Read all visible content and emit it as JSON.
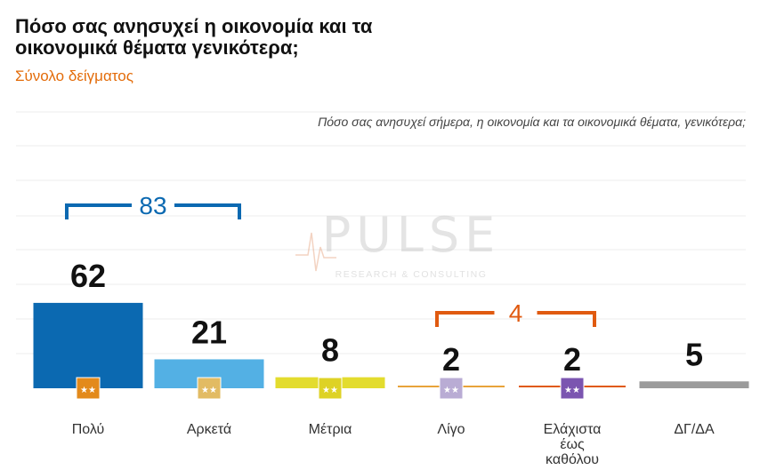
{
  "header": {
    "title_line1": "Πόσο σας ανησυχεί η οικονομία και τα",
    "title_line2": "οικονομικά θέματα γενικότερα;",
    "subtitle": "Σύνολο δείγματος",
    "question": "Πόσο σας ανησυχεί σήμερα, η οικονομία και τα οικονομικά θέματα, γενικότερα;"
  },
  "watermark": {
    "brand": "PULSE",
    "tagline": "RESEARCH & CONSULTING"
  },
  "colors": {
    "poly": "#0b69b1",
    "arketa": "#53b0e4",
    "metria": "#e3dc2e",
    "ligo": "#e8a33a",
    "elaxista": "#e05a10",
    "dg": "#9b9b9b",
    "group1": "#0b69b1",
    "group2": "#e05a10"
  },
  "chart_data": {
    "type": "bar",
    "categories": [
      "Πολύ",
      "Αρκετά",
      "Μέτρια",
      "Λίγο",
      "Ελάχιστα έως καθόλου",
      "ΔΓ/ΔΑ"
    ],
    "category_lines": [
      [
        "Πολύ"
      ],
      [
        "Αρκετά"
      ],
      [
        "Μέτρια"
      ],
      [
        "Λίγο"
      ],
      [
        "Ελάχιστα",
        "έως",
        "καθόλου"
      ],
      [
        "ΔΓ/ΔΑ"
      ]
    ],
    "values": [
      62,
      21,
      8,
      2,
      2,
      5
    ],
    "value_labels": [
      "62",
      "21",
      "8",
      "2",
      "2",
      "5"
    ],
    "icons": [
      "stars-orange-icon",
      "stars-tan-icon",
      "stars-yellow-icon",
      "stars-lilac-icon",
      "stars-purple-icon",
      ""
    ],
    "groups": [
      {
        "label": "83",
        "from": 0,
        "to": 1
      },
      {
        "label": "4",
        "from": 3,
        "to": 4
      }
    ],
    "ylim": [
      0,
      100
    ],
    "grid": true
  }
}
